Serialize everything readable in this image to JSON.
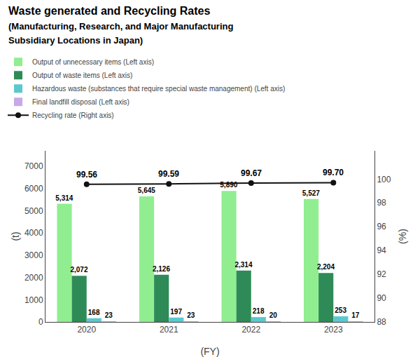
{
  "chart_data": {
    "type": "bar",
    "title": "Waste generated and Recycling Rates",
    "subtitle": [
      "(Manufacturing, Research, and Major Manufacturing",
      "Subsidiary Locations in Japan)"
    ],
    "x_label": "(FY)",
    "y_label": "(t)",
    "y2_label": "(%)",
    "categories": [
      "2020",
      "2021",
      "2022",
      "2023"
    ],
    "series": [
      {
        "name": "Output of unnecessary items (Left axis)",
        "type": "bar",
        "color": "#90EE90",
        "values": [
          5314,
          5645,
          5890,
          5527
        ],
        "value_labels": [
          "5,314",
          "5,645",
          "5,890",
          "5,527"
        ]
      },
      {
        "name": "Output of waste items (Left axis)",
        "type": "bar",
        "color": "#2E8B57",
        "values": [
          2072,
          2126,
          2314,
          2204
        ],
        "value_labels": [
          "2,072",
          "2,126",
          "2,314",
          "2,204"
        ]
      },
      {
        "name": "Hazardous waste (substances that require special waste management) (Left axis)",
        "type": "bar",
        "color": "#5BC8D0",
        "values": [
          168,
          197,
          218,
          253
        ]
      },
      {
        "name": "Final landfill disposal (Left axis)",
        "type": "bar",
        "color": "#C8A8E8",
        "values": [
          23,
          23,
          20,
          17
        ]
      },
      {
        "name": "Recycling rate (Right axis)",
        "type": "line",
        "axis": "y2",
        "color": "#111111",
        "marker": "circle",
        "values": [
          99.56,
          99.59,
          99.67,
          99.7
        ],
        "value_labels": [
          "99.56",
          "99.59",
          "99.67",
          "99.70"
        ]
      }
    ],
    "ylim": [
      0,
      7700
    ],
    "yticks": [
      0,
      1000,
      2000,
      3000,
      4000,
      5000,
      6000,
      7000
    ],
    "y2lim": [
      88,
      102.375
    ],
    "y2ticks": [
      88,
      90,
      92,
      94,
      96,
      98,
      100
    ],
    "data_labels": true,
    "grid": false,
    "legend": "top"
  }
}
